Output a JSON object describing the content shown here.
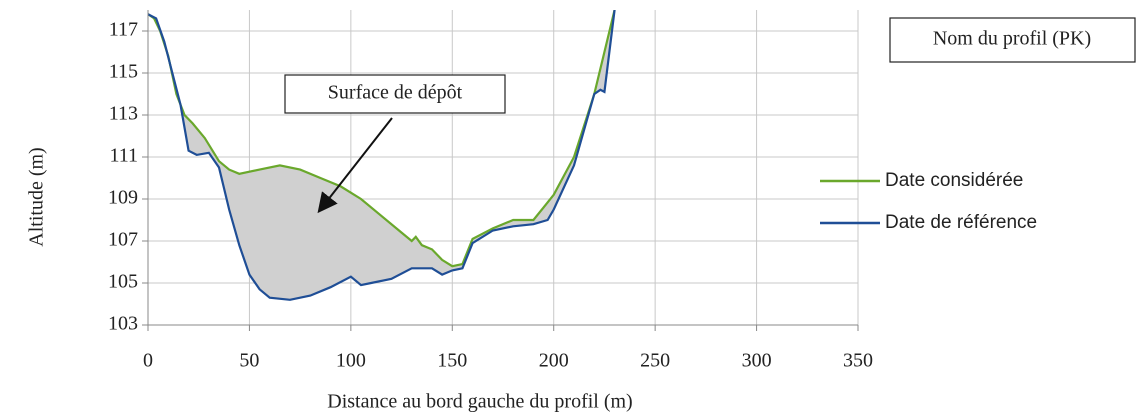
{
  "chart_data": {
    "type": "line",
    "x_label": "Distance au bord gauche du profil (m)",
    "y_label": "Altitude (m)",
    "annotations": [
      "Surface de dépôt",
      "Nom du profil (PK)"
    ],
    "series": [
      {
        "name": "Date considérée",
        "color": "#6aa82c",
        "x": [
          0,
          3,
          6,
          10,
          14,
          18,
          22,
          28,
          35,
          40,
          45,
          55,
          65,
          75,
          85,
          95,
          105,
          115,
          125,
          130,
          132,
          135,
          140,
          145,
          150,
          155,
          160,
          170,
          180,
          190,
          195,
          200,
          210,
          220,
          225,
          230
        ],
        "values": [
          117.8,
          117.6,
          117,
          115.8,
          114,
          113,
          112.6,
          111.9,
          110.8,
          110.4,
          110.2,
          110.4,
          110.6,
          110.4,
          110,
          109.6,
          109,
          108.2,
          107.4,
          107,
          107.2,
          106.8,
          106.6,
          106.1,
          105.8,
          105.9,
          107.1,
          107.6,
          108,
          108,
          108.6,
          109.2,
          111,
          114,
          116,
          118
        ]
      },
      {
        "name": "Date de référence",
        "color": "#1f4e96",
        "x": [
          0,
          4,
          8,
          12,
          16,
          20,
          24,
          30,
          35,
          40,
          45,
          50,
          55,
          60,
          70,
          80,
          90,
          100,
          105,
          110,
          120,
          130,
          140,
          145,
          150,
          155,
          160,
          170,
          180,
          190,
          197,
          200,
          210,
          220,
          223,
          225,
          230
        ],
        "values": [
          117.8,
          117.6,
          116.5,
          115,
          113.5,
          111.3,
          111.1,
          111.2,
          110.5,
          108.5,
          106.8,
          105.4,
          104.7,
          104.3,
          104.2,
          104.4,
          104.8,
          105.3,
          104.9,
          105,
          105.2,
          105.7,
          105.7,
          105.4,
          105.6,
          105.7,
          106.9,
          107.5,
          107.7,
          107.8,
          108,
          108.5,
          110.6,
          114,
          114.2,
          114.1,
          118
        ]
      }
    ],
    "xlim": [
      0,
      350
    ],
    "xticks": [
      0,
      50,
      100,
      150,
      200,
      250,
      300,
      350
    ],
    "ylim": [
      103,
      118
    ],
    "yticks": [
      103,
      105,
      107,
      109,
      111,
      113,
      115,
      117
    ],
    "grid": true
  }
}
